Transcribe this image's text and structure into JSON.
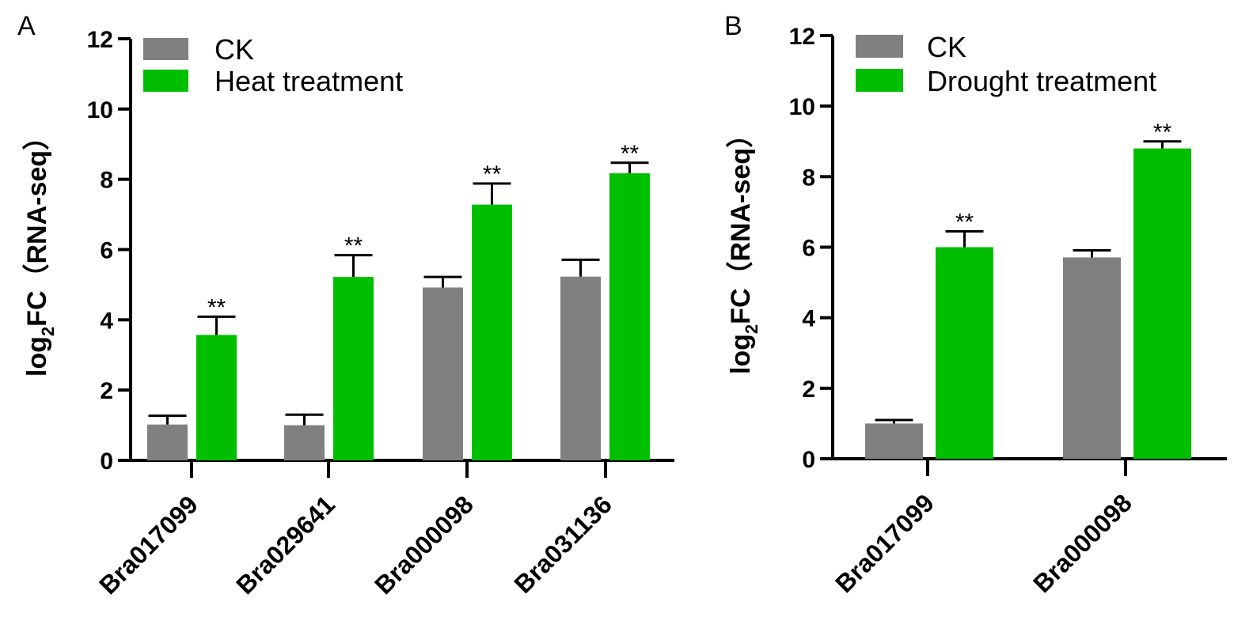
{
  "colors": {
    "CK": "#808080",
    "treatment": "#00be00",
    "axis": "#000000"
  },
  "chart_data": [
    {
      "type": "bar",
      "panel": "A",
      "ylabel": "log2FC（RNA-seq）",
      "ylabel_parts": {
        "pre": "log",
        "sub": "2",
        "post": "FC（RNA-seq）"
      },
      "ylim": [
        0,
        12
      ],
      "yticks": [
        "0",
        "2",
        "4",
        "6",
        "8",
        "10",
        "12"
      ],
      "categories": [
        "Bra017099",
        "Bra029641",
        "Bra000098",
        "Bra031136"
      ],
      "legend_position": "top-left",
      "series": [
        {
          "name": "CK",
          "values": [
            1.02,
            1.0,
            4.92,
            5.23
          ],
          "errors": [
            0.25,
            0.3,
            0.3,
            0.48
          ],
          "sig": [
            "",
            "",
            "",
            ""
          ]
        },
        {
          "name": "Heat treatment",
          "values": [
            3.57,
            5.22,
            7.28,
            8.17
          ],
          "errors": [
            0.52,
            0.62,
            0.6,
            0.3
          ],
          "sig": [
            "**",
            "**",
            "**",
            "**"
          ]
        }
      ]
    },
    {
      "type": "bar",
      "panel": "B",
      "ylabel": "log2FC（RNA-seq）",
      "ylabel_parts": {
        "pre": "log",
        "sub": "2",
        "post": "FC（RNA-seq）"
      },
      "ylim": [
        0,
        12
      ],
      "yticks": [
        "0",
        "2",
        "4",
        "6",
        "8",
        "10",
        "12"
      ],
      "categories": [
        "Bra017099",
        "Bra000098"
      ],
      "legend_position": "top-left",
      "series": [
        {
          "name": "CK",
          "values": [
            1.0,
            5.71
          ],
          "errors": [
            0.1,
            0.2
          ],
          "sig": [
            "",
            ""
          ]
        },
        {
          "name": "Drought treatment",
          "values": [
            6.0,
            8.8
          ],
          "errors": [
            0.45,
            0.2
          ],
          "sig": [
            "**",
            "**"
          ]
        }
      ]
    }
  ]
}
